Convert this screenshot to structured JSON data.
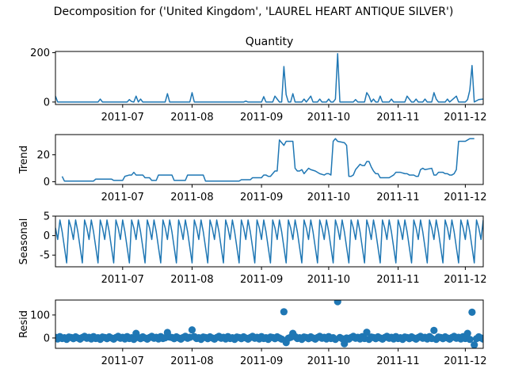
{
  "suptitle": "Decomposition for ('United Kingdom', 'LAUREL HEART ANTIQUE SILVER')",
  "colors": {
    "series": "#1f77b4",
    "axis": "#000000",
    "zero_line": "#000000"
  },
  "chart_data": [
    {
      "type": "line",
      "title": "Quantity",
      "ylabel": "",
      "xlabel": "",
      "xlim": [
        "2011-06-01",
        "2011-12-09"
      ],
      "ylim": [
        -10,
        205
      ],
      "yticks": [
        0,
        200
      ],
      "xticks": [
        "2011-07",
        "2011-08",
        "2011-09",
        "2011-10",
        "2011-11",
        "2011-12"
      ],
      "points": [
        [
          "2011-06-01",
          24
        ],
        [
          "2011-06-02",
          0
        ],
        [
          "2011-06-20",
          0
        ],
        [
          "2011-06-21",
          12
        ],
        [
          "2011-06-22",
          0
        ],
        [
          "2011-07-03",
          0
        ],
        [
          "2011-07-04",
          10
        ],
        [
          "2011-07-05",
          2
        ],
        [
          "2011-07-06",
          0
        ],
        [
          "2011-07-07",
          24
        ],
        [
          "2011-07-08",
          0
        ],
        [
          "2011-07-09",
          12
        ],
        [
          "2011-07-10",
          0
        ],
        [
          "2011-07-20",
          0
        ],
        [
          "2011-07-21",
          34
        ],
        [
          "2011-07-22",
          0
        ],
        [
          "2011-07-31",
          0
        ],
        [
          "2011-08-01",
          38
        ],
        [
          "2011-08-02",
          0
        ],
        [
          "2011-08-24",
          0
        ],
        [
          "2011-08-25",
          4
        ],
        [
          "2011-08-26",
          0
        ],
        [
          "2011-09-01",
          0
        ],
        [
          "2011-09-02",
          22
        ],
        [
          "2011-09-03",
          0
        ],
        [
          "2011-09-06",
          0
        ],
        [
          "2011-09-07",
          24
        ],
        [
          "2011-09-08",
          12
        ],
        [
          "2011-09-09",
          0
        ],
        [
          "2011-09-10",
          0
        ],
        [
          "2011-09-11",
          144
        ],
        [
          "2011-09-12",
          30
        ],
        [
          "2011-09-13",
          0
        ],
        [
          "2011-09-14",
          0
        ],
        [
          "2011-09-15",
          34
        ],
        [
          "2011-09-16",
          0
        ],
        [
          "2011-09-19",
          0
        ],
        [
          "2011-09-20",
          12
        ],
        [
          "2011-09-21",
          0
        ],
        [
          "2011-09-23",
          24
        ],
        [
          "2011-09-24",
          0
        ],
        [
          "2011-09-26",
          0
        ],
        [
          "2011-09-27",
          12
        ],
        [
          "2011-09-28",
          0
        ],
        [
          "2011-09-30",
          0
        ],
        [
          "2011-10-01",
          12
        ],
        [
          "2011-10-02",
          0
        ],
        [
          "2011-10-03",
          0
        ],
        [
          "2011-10-04",
          12
        ],
        [
          "2011-10-05",
          196
        ],
        [
          "2011-10-06",
          0
        ],
        [
          "2011-10-12",
          0
        ],
        [
          "2011-10-13",
          10
        ],
        [
          "2011-10-14",
          0
        ],
        [
          "2011-10-17",
          0
        ],
        [
          "2011-10-18",
          38
        ],
        [
          "2011-10-19",
          24
        ],
        [
          "2011-10-20",
          0
        ],
        [
          "2011-10-21",
          12
        ],
        [
          "2011-10-22",
          0
        ],
        [
          "2011-10-23",
          0
        ],
        [
          "2011-10-24",
          24
        ],
        [
          "2011-10-25",
          0
        ],
        [
          "2011-10-28",
          0
        ],
        [
          "2011-10-29",
          12
        ],
        [
          "2011-10-30",
          0
        ],
        [
          "2011-11-04",
          0
        ],
        [
          "2011-11-05",
          24
        ],
        [
          "2011-11-06",
          12
        ],
        [
          "2011-11-07",
          0
        ],
        [
          "2011-11-08",
          0
        ],
        [
          "2011-11-09",
          12
        ],
        [
          "2011-11-10",
          0
        ],
        [
          "2011-11-12",
          0
        ],
        [
          "2011-11-13",
          12
        ],
        [
          "2011-11-14",
          0
        ],
        [
          "2011-11-16",
          0
        ],
        [
          "2011-11-17",
          38
        ],
        [
          "2011-11-18",
          12
        ],
        [
          "2011-11-19",
          0
        ],
        [
          "2011-11-22",
          0
        ],
        [
          "2011-11-23",
          12
        ],
        [
          "2011-11-24",
          0
        ],
        [
          "2011-11-27",
          24
        ],
        [
          "2011-11-28",
          0
        ],
        [
          "2011-12-01",
          0
        ],
        [
          "2011-12-02",
          10
        ],
        [
          "2011-12-03",
          48
        ],
        [
          "2011-12-04",
          148
        ],
        [
          "2011-12-05",
          0
        ],
        [
          "2011-12-07",
          10
        ],
        [
          "2011-12-09",
          12
        ]
      ]
    },
    {
      "type": "line",
      "title": "",
      "ylabel": "Trend",
      "xlabel": "",
      "xlim": [
        "2011-06-01",
        "2011-12-09"
      ],
      "ylim": [
        -2,
        35
      ],
      "yticks": [
        0,
        20
      ],
      "xticks": [
        "2011-07",
        "2011-08",
        "2011-09",
        "2011-10",
        "2011-11",
        "2011-12"
      ],
      "points": [
        [
          "2011-06-04",
          4
        ],
        [
          "2011-06-05",
          0.5
        ],
        [
          "2011-06-18",
          0.5
        ],
        [
          "2011-06-19",
          2
        ],
        [
          "2011-06-26",
          2
        ],
        [
          "2011-06-27",
          1
        ],
        [
          "2011-07-01",
          1
        ],
        [
          "2011-07-02",
          4
        ],
        [
          "2011-07-04",
          5
        ],
        [
          "2011-07-05",
          5
        ],
        [
          "2011-07-06",
          7
        ],
        [
          "2011-07-07",
          5
        ],
        [
          "2011-07-10",
          5
        ],
        [
          "2011-07-11",
          3
        ],
        [
          "2011-07-13",
          3
        ],
        [
          "2011-07-14",
          1
        ],
        [
          "2011-07-16",
          1
        ],
        [
          "2011-07-17",
          5
        ],
        [
          "2011-07-23",
          5
        ],
        [
          "2011-07-24",
          1
        ],
        [
          "2011-07-29",
          1
        ],
        [
          "2011-07-30",
          5
        ],
        [
          "2011-08-06",
          5
        ],
        [
          "2011-08-07",
          0.5
        ],
        [
          "2011-08-22",
          0.5
        ],
        [
          "2011-08-23",
          1.5
        ],
        [
          "2011-08-27",
          1.5
        ],
        [
          "2011-08-28",
          3
        ],
        [
          "2011-09-01",
          3
        ],
        [
          "2011-09-02",
          5
        ],
        [
          "2011-09-03",
          5
        ],
        [
          "2011-09-04",
          4
        ],
        [
          "2011-09-05",
          4
        ],
        [
          "2011-09-06",
          6
        ],
        [
          "2011-09-07",
          8
        ],
        [
          "2011-09-08",
          8
        ],
        [
          "2011-09-09",
          31
        ],
        [
          "2011-09-10",
          29
        ],
        [
          "2011-09-11",
          27
        ],
        [
          "2011-09-12",
          30
        ],
        [
          "2011-09-15",
          30
        ],
        [
          "2011-09-16",
          10
        ],
        [
          "2011-09-17",
          8
        ],
        [
          "2011-09-18",
          8
        ],
        [
          "2011-09-19",
          9
        ],
        [
          "2011-09-20",
          6
        ],
        [
          "2011-09-21",
          8
        ],
        [
          "2011-09-22",
          10
        ],
        [
          "2011-09-23",
          9
        ],
        [
          "2011-09-25",
          8
        ],
        [
          "2011-09-27",
          6
        ],
        [
          "2011-09-29",
          5
        ],
        [
          "2011-09-30",
          6
        ],
        [
          "2011-10-01",
          6
        ],
        [
          "2011-10-02",
          5
        ],
        [
          "2011-10-03",
          30
        ],
        [
          "2011-10-04",
          32
        ],
        [
          "2011-10-05",
          30
        ],
        [
          "2011-10-08",
          29
        ],
        [
          "2011-10-09",
          27
        ],
        [
          "2011-10-10",
          4
        ],
        [
          "2011-10-11",
          4
        ],
        [
          "2011-10-12",
          5
        ],
        [
          "2011-10-13",
          9
        ],
        [
          "2011-10-14",
          11
        ],
        [
          "2011-10-15",
          13
        ],
        [
          "2011-10-16",
          12
        ],
        [
          "2011-10-17",
          12
        ],
        [
          "2011-10-18",
          15
        ],
        [
          "2011-10-19",
          15
        ],
        [
          "2011-10-20",
          11
        ],
        [
          "2011-10-21",
          8
        ],
        [
          "2011-10-22",
          6
        ],
        [
          "2011-10-23",
          6
        ],
        [
          "2011-10-24",
          3
        ],
        [
          "2011-10-28",
          3
        ],
        [
          "2011-10-29",
          4
        ],
        [
          "2011-10-30",
          5
        ],
        [
          "2011-10-31",
          7
        ],
        [
          "2011-11-02",
          7
        ],
        [
          "2011-11-04",
          6
        ],
        [
          "2011-11-05",
          6
        ],
        [
          "2011-11-06",
          5
        ],
        [
          "2011-11-08",
          5
        ],
        [
          "2011-11-09",
          4
        ],
        [
          "2011-11-10",
          4
        ],
        [
          "2011-11-11",
          9
        ],
        [
          "2011-11-12",
          10
        ],
        [
          "2011-11-13",
          9
        ],
        [
          "2011-11-16",
          10
        ],
        [
          "2011-11-17",
          5
        ],
        [
          "2011-11-18",
          5
        ],
        [
          "2011-11-19",
          7
        ],
        [
          "2011-11-21",
          7
        ],
        [
          "2011-11-22",
          6
        ],
        [
          "2011-11-23",
          6
        ],
        [
          "2011-11-24",
          5
        ],
        [
          "2011-11-25",
          5
        ],
        [
          "2011-11-26",
          6
        ],
        [
          "2011-11-27",
          9
        ],
        [
          "2011-11-28",
          30
        ],
        [
          "2011-12-01",
          30
        ],
        [
          "2011-12-02",
          31
        ],
        [
          "2011-12-03",
          32
        ],
        [
          "2011-12-05",
          32
        ]
      ]
    },
    {
      "type": "line",
      "title": "",
      "ylabel": "Seasonal",
      "xlabel": "",
      "xlim": [
        "2011-06-01",
        "2011-12-09"
      ],
      "ylim": [
        -8,
        5
      ],
      "yticks": [
        -5,
        0,
        5
      ],
      "xticks": [
        "2011-07",
        "2011-08",
        "2011-09",
        "2011-10",
        "2011-11",
        "2011-12"
      ],
      "period_days": 7,
      "weekly_pattern": [
        2,
        -1,
        4,
        1,
        -3,
        -7,
        4
      ],
      "pattern_start": "2011-06-01"
    },
    {
      "type": "scatter",
      "title": "",
      "ylabel": "Resid",
      "xlabel": "",
      "xlim": [
        "2011-06-01",
        "2011-12-09"
      ],
      "ylim": [
        -45,
        165
      ],
      "yticks": [
        0,
        100
      ],
      "xticks": [
        "2011-07",
        "2011-08",
        "2011-09",
        "2011-10",
        "2011-11",
        "2011-12"
      ],
      "zero_line": true,
      "outliers": [
        [
          "2011-07-07",
          20
        ],
        [
          "2011-07-21",
          24
        ],
        [
          "2011-08-01",
          35
        ],
        [
          "2011-09-11",
          114
        ],
        [
          "2011-09-12",
          -20
        ],
        [
          "2011-09-15",
          20
        ],
        [
          "2011-10-05",
          158
        ],
        [
          "2011-10-08",
          -25
        ],
        [
          "2011-10-18",
          25
        ],
        [
          "2011-11-17",
          33
        ],
        [
          "2011-12-02",
          20
        ],
        [
          "2011-12-04",
          112
        ],
        [
          "2011-12-05",
          -30
        ]
      ]
    }
  ]
}
